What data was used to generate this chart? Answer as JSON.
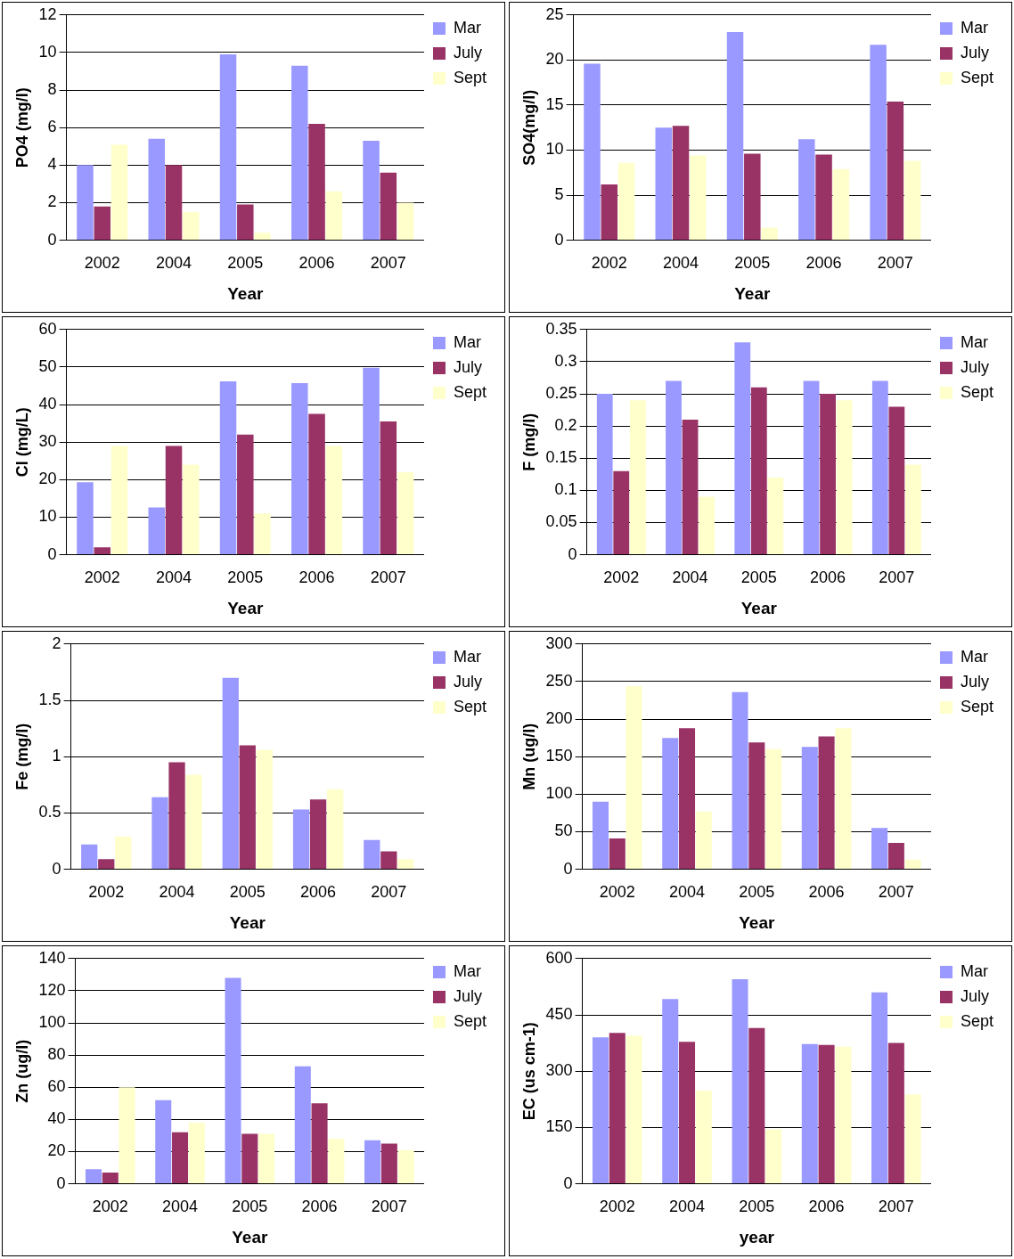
{
  "chart_data": [
    {
      "type": "bar",
      "xlabel": "Year",
      "ylabel": "PO4 (mg/l)",
      "categories": [
        "2002",
        "2004",
        "2005",
        "2006",
        "2007"
      ],
      "ylim": [
        0,
        12
      ],
      "yticks": [
        0,
        2,
        4,
        6,
        8,
        10,
        12
      ],
      "grid": "y",
      "legend": "top right",
      "series": [
        {
          "name": "Mar",
          "color": "#9999ff",
          "values": [
            4,
            5.4,
            9.9,
            9.3,
            5.3
          ]
        },
        {
          "name": "July",
          "color": "#993366",
          "values": [
            1.8,
            4,
            1.9,
            6.2,
            3.6
          ]
        },
        {
          "name": "Sept",
          "color": "#ffffcc",
          "values": [
            5.1,
            1.5,
            0.4,
            2.6,
            2
          ]
        }
      ]
    },
    {
      "type": "bar",
      "xlabel": "Year",
      "ylabel": "SO4(mg/l)",
      "categories": [
        "2002",
        "2004",
        "2005",
        "2006",
        "2007"
      ],
      "ylim": [
        0,
        25
      ],
      "yticks": [
        0,
        5,
        10,
        15,
        20,
        25
      ],
      "grid": "y",
      "legend": "top right",
      "series": [
        {
          "name": "Mar",
          "color": "#9999ff",
          "values": [
            19.6,
            12.5,
            23.1,
            11.2,
            21.7
          ]
        },
        {
          "name": "July",
          "color": "#993366",
          "values": [
            6.2,
            12.7,
            9.6,
            9.5,
            15.4
          ]
        },
        {
          "name": "Sept",
          "color": "#ffffcc",
          "values": [
            8.6,
            9.4,
            1.4,
            7.9,
            8.8
          ]
        }
      ]
    },
    {
      "type": "bar",
      "xlabel": "Year",
      "ylabel": "Cl (mg/L)",
      "categories": [
        "2002",
        "2004",
        "2005",
        "2006",
        "2007"
      ],
      "ylim": [
        0,
        60
      ],
      "yticks": [
        0,
        10,
        20,
        30,
        40,
        50,
        60
      ],
      "grid": "y",
      "legend": "top right",
      "series": [
        {
          "name": "Mar",
          "color": "#9999ff",
          "values": [
            19.3,
            12.6,
            46.2,
            45.7,
            49.8
          ]
        },
        {
          "name": "July",
          "color": "#993366",
          "values": [
            2,
            29,
            32,
            37.5,
            35.5
          ]
        },
        {
          "name": "Sept",
          "color": "#ffffcc",
          "values": [
            29,
            24,
            11,
            29,
            22
          ]
        }
      ]
    },
    {
      "type": "bar",
      "xlabel": "Year",
      "ylabel": "F (mg/l)",
      "categories": [
        "2002",
        "2004",
        "2005",
        "2006",
        "2007"
      ],
      "ylim": [
        0,
        0.35
      ],
      "yticks": [
        0,
        0.05,
        0.1,
        0.15,
        0.2,
        0.25,
        0.3,
        0.35
      ],
      "grid": "y",
      "legend": "top right",
      "series": [
        {
          "name": "Mar",
          "color": "#9999ff",
          "values": [
            0.25,
            0.27,
            0.33,
            0.27,
            0.27
          ]
        },
        {
          "name": "July",
          "color": "#993366",
          "values": [
            0.13,
            0.21,
            0.26,
            0.25,
            0.23
          ]
        },
        {
          "name": "Sept",
          "color": "#ffffcc",
          "values": [
            0.24,
            0.09,
            0.12,
            0.24,
            0.14
          ]
        }
      ]
    },
    {
      "type": "bar",
      "xlabel": "Year",
      "ylabel": "Fe (mg/l)",
      "categories": [
        "2002",
        "2004",
        "2005",
        "2006",
        "2007"
      ],
      "ylim": [
        0,
        2
      ],
      "yticks": [
        0,
        0.5,
        1,
        1.5,
        2
      ],
      "grid": "y",
      "legend": "top right",
      "series": [
        {
          "name": "Mar",
          "color": "#9999ff",
          "values": [
            0.22,
            0.64,
            1.7,
            0.53,
            0.26
          ]
        },
        {
          "name": "July",
          "color": "#993366",
          "values": [
            0.09,
            0.95,
            1.1,
            0.62,
            0.16
          ]
        },
        {
          "name": "Sept",
          "color": "#ffffcc",
          "values": [
            0.29,
            0.84,
            1.06,
            0.71,
            0.09
          ]
        }
      ]
    },
    {
      "type": "bar",
      "xlabel": "Year",
      "ylabel": "Mn (ug/l)",
      "categories": [
        "2002",
        "2004",
        "2005",
        "2006",
        "2007"
      ],
      "ylim": [
        0,
        300
      ],
      "yticks": [
        0,
        50,
        100,
        150,
        200,
        250,
        300
      ],
      "grid": "y",
      "legend": "top right",
      "series": [
        {
          "name": "Mar",
          "color": "#9999ff",
          "values": [
            90,
            175,
            236,
            163,
            55
          ]
        },
        {
          "name": "July",
          "color": "#993366",
          "values": [
            41,
            188,
            169,
            177,
            35
          ]
        },
        {
          "name": "Sept",
          "color": "#ffffcc",
          "values": [
            244,
            77,
            160,
            188,
            13
          ]
        }
      ]
    },
    {
      "type": "bar",
      "xlabel": "Year",
      "ylabel": "Zn (ug/l)",
      "categories": [
        "2002",
        "2004",
        "2005",
        "2006",
        "2007"
      ],
      "ylim": [
        0,
        140
      ],
      "yticks": [
        0,
        20,
        40,
        60,
        80,
        100,
        120,
        140
      ],
      "grid": "y",
      "legend": "top right",
      "series": [
        {
          "name": "Mar",
          "color": "#9999ff",
          "values": [
            9,
            52,
            128,
            73,
            27
          ]
        },
        {
          "name": "July",
          "color": "#993366",
          "values": [
            7,
            32,
            31,
            50,
            25
          ]
        },
        {
          "name": "Sept",
          "color": "#ffffcc",
          "values": [
            60,
            38,
            31,
            28,
            21
          ]
        }
      ]
    },
    {
      "type": "bar",
      "xlabel": "year",
      "ylabel": "EC (us cm-1)",
      "categories": [
        "2002",
        "2004",
        "2005",
        "2006",
        "2007"
      ],
      "ylim": [
        0,
        600
      ],
      "yticks": [
        0,
        150,
        300,
        450,
        600
      ],
      "grid": "y",
      "legend": "top right",
      "series": [
        {
          "name": "Mar",
          "color": "#9999ff",
          "values": [
            390,
            492,
            545,
            372,
            510
          ]
        },
        {
          "name": "July",
          "color": "#993366",
          "values": [
            402,
            378,
            415,
            370,
            375
          ]
        },
        {
          "name": "Sept",
          "color": "#ffffcc",
          "values": [
            395,
            248,
            145,
            365,
            238
          ]
        }
      ]
    }
  ]
}
